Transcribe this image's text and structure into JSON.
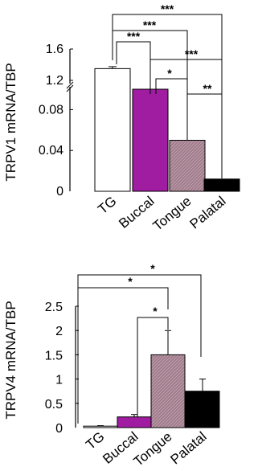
{
  "chart_data": [
    {
      "type": "bar",
      "ylabel": "TRPV1 mRNA/TBP",
      "categories": [
        "TG",
        "Buccal",
        "Tongue",
        "Palatal"
      ],
      "values": [
        1.35,
        0.1,
        0.05,
        0.012
      ],
      "errors": [
        0.025,
        0.0,
        0.0,
        0.0
      ],
      "yaxis": {
        "broken": true,
        "lower_range": [
          0,
          0.1
        ],
        "upper_range": [
          1.2,
          1.6
        ],
        "lower_ticks": [
          "0",
          "0.04",
          "0.08"
        ],
        "upper_ticks": [
          "1.2",
          "1.6"
        ]
      },
      "colors": [
        "#ffffff",
        "#a01ca0",
        "#a07a8a",
        "#000000"
      ],
      "significance": [
        {
          "from": 0,
          "to": 3,
          "label": "***"
        },
        {
          "from": 0,
          "to": 2,
          "label": "***"
        },
        {
          "from": 0,
          "to": 1,
          "label": "***"
        },
        {
          "from": 1,
          "to": 3,
          "label": "***"
        },
        {
          "from": 1,
          "to": 2,
          "label": "*"
        },
        {
          "from": 2,
          "to": 3,
          "label": "**"
        }
      ]
    },
    {
      "type": "bar",
      "ylabel": "TRPV4 mRNA/TBP",
      "categories": [
        "TG",
        "Buccal",
        "Tongue",
        "Palatal"
      ],
      "values": [
        0.03,
        0.22,
        1.5,
        0.75
      ],
      "errors": [
        0.01,
        0.05,
        0.5,
        0.25
      ],
      "ylim": [
        0,
        2.5
      ],
      "ticks": [
        "0",
        "0.5",
        "1",
        "1.5",
        "2",
        "2.5"
      ],
      "colors": [
        "#ffffff",
        "#a01ca0",
        "#a07a8a",
        "#000000"
      ],
      "significance": [
        {
          "from": 0,
          "to": 3,
          "label": "*"
        },
        {
          "from": 0,
          "to": 2,
          "label": "*"
        },
        {
          "from": 1,
          "to": 2,
          "label": "*"
        }
      ]
    }
  ]
}
